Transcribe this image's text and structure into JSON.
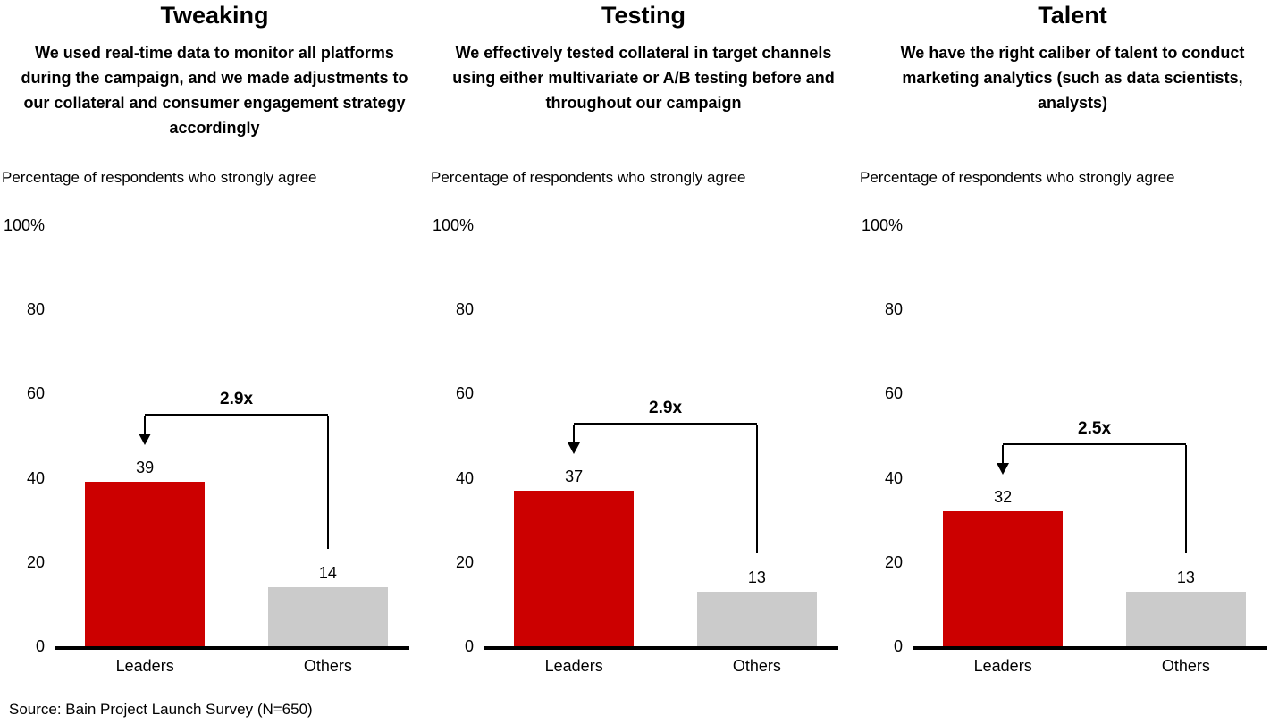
{
  "source_note": "Source: Bain Project Launch Survey (N=650)",
  "colors": {
    "leaders": "#cc0000",
    "others": "#cbcbcb",
    "axis": "#000000",
    "text": "#000000"
  },
  "chart_data": [
    {
      "type": "bar",
      "title": "Tweaking",
      "subtitle": "We used real-time data to monitor all platforms during the campaign, and we made adjustments to our collateral and consumer engagement strategy accordingly",
      "ylabel": "Percentage of respondents who strongly agree",
      "ylim": [
        0,
        100
      ],
      "yticklabels": [
        "100%",
        "80",
        "60",
        "40",
        "20",
        "0"
      ],
      "categories": [
        "Leaders",
        "Others"
      ],
      "values": [
        39,
        14
      ],
      "multiplier": "2.9x",
      "series_colors": [
        "#cc0000",
        "#cbcbcb"
      ],
      "grid": false,
      "legend": "none"
    },
    {
      "type": "bar",
      "title": "Testing",
      "subtitle": "We effectively tested collateral in target channels using either multivariate or A/B testing before and throughout our campaign",
      "ylabel": "Percentage of respondents who strongly agree",
      "ylim": [
        0,
        100
      ],
      "yticklabels": [
        "100%",
        "80",
        "60",
        "40",
        "20",
        "0"
      ],
      "categories": [
        "Leaders",
        "Others"
      ],
      "values": [
        37,
        13
      ],
      "multiplier": "2.9x",
      "series_colors": [
        "#cc0000",
        "#cbcbcb"
      ],
      "grid": false,
      "legend": "none"
    },
    {
      "type": "bar",
      "title": "Talent",
      "subtitle": "We have the right caliber of talent to conduct marketing analytics (such as data scientists, analysts)",
      "ylabel": "Percentage of respondents who strongly agree",
      "ylim": [
        0,
        100
      ],
      "yticklabels": [
        "100%",
        "80",
        "60",
        "40",
        "20",
        "0"
      ],
      "categories": [
        "Leaders",
        "Others"
      ],
      "values": [
        32,
        13
      ],
      "multiplier": "2.5x",
      "series_colors": [
        "#cc0000",
        "#cbcbcb"
      ],
      "grid": false,
      "legend": "none"
    }
  ]
}
